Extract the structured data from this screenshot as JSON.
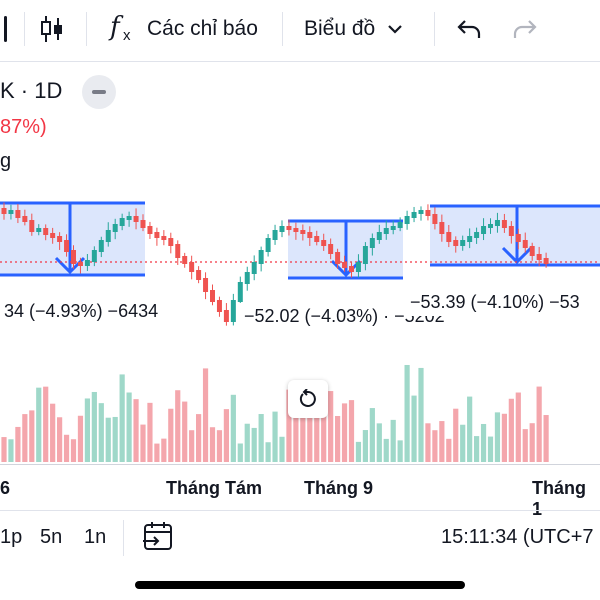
{
  "toolbar": {
    "indicators_label": "Các chỉ báo",
    "chart_type_label": "Biểu đồ",
    "fx_glyph": "f",
    "fx_sub": "x"
  },
  "legend": {
    "symbol": "K · 1D",
    "change": "87%)",
    "cut_text": "g"
  },
  "measure_labels": [
    "34 (−4.93%) −6434",
    "−52.02 (−4.03%) · −5202",
    "−53.39 (−4.10%) −53"
  ],
  "time_axis": [
    "6",
    "Tháng Tám",
    "Tháng 9",
    "Tháng 1"
  ],
  "bottom_bar": {
    "ranges": [
      "1p",
      "5n",
      "1n"
    ],
    "clock": "15:11:34 (UTC+7"
  },
  "colors": {
    "up": "#26a69a",
    "down": "#ef5350",
    "up_volume": "#9fd8c9",
    "down_volume": "#f4a6ac",
    "measure_line": "#2962ff",
    "measure_fill": "#d6e2fb",
    "price_line": "#f23645"
  },
  "icons": [
    "candles-icon",
    "fx-icon",
    "chevron-down-icon",
    "undo-icon",
    "redo-icon",
    "calendar-goto-icon",
    "reset-icon",
    "minus-icon"
  ]
}
